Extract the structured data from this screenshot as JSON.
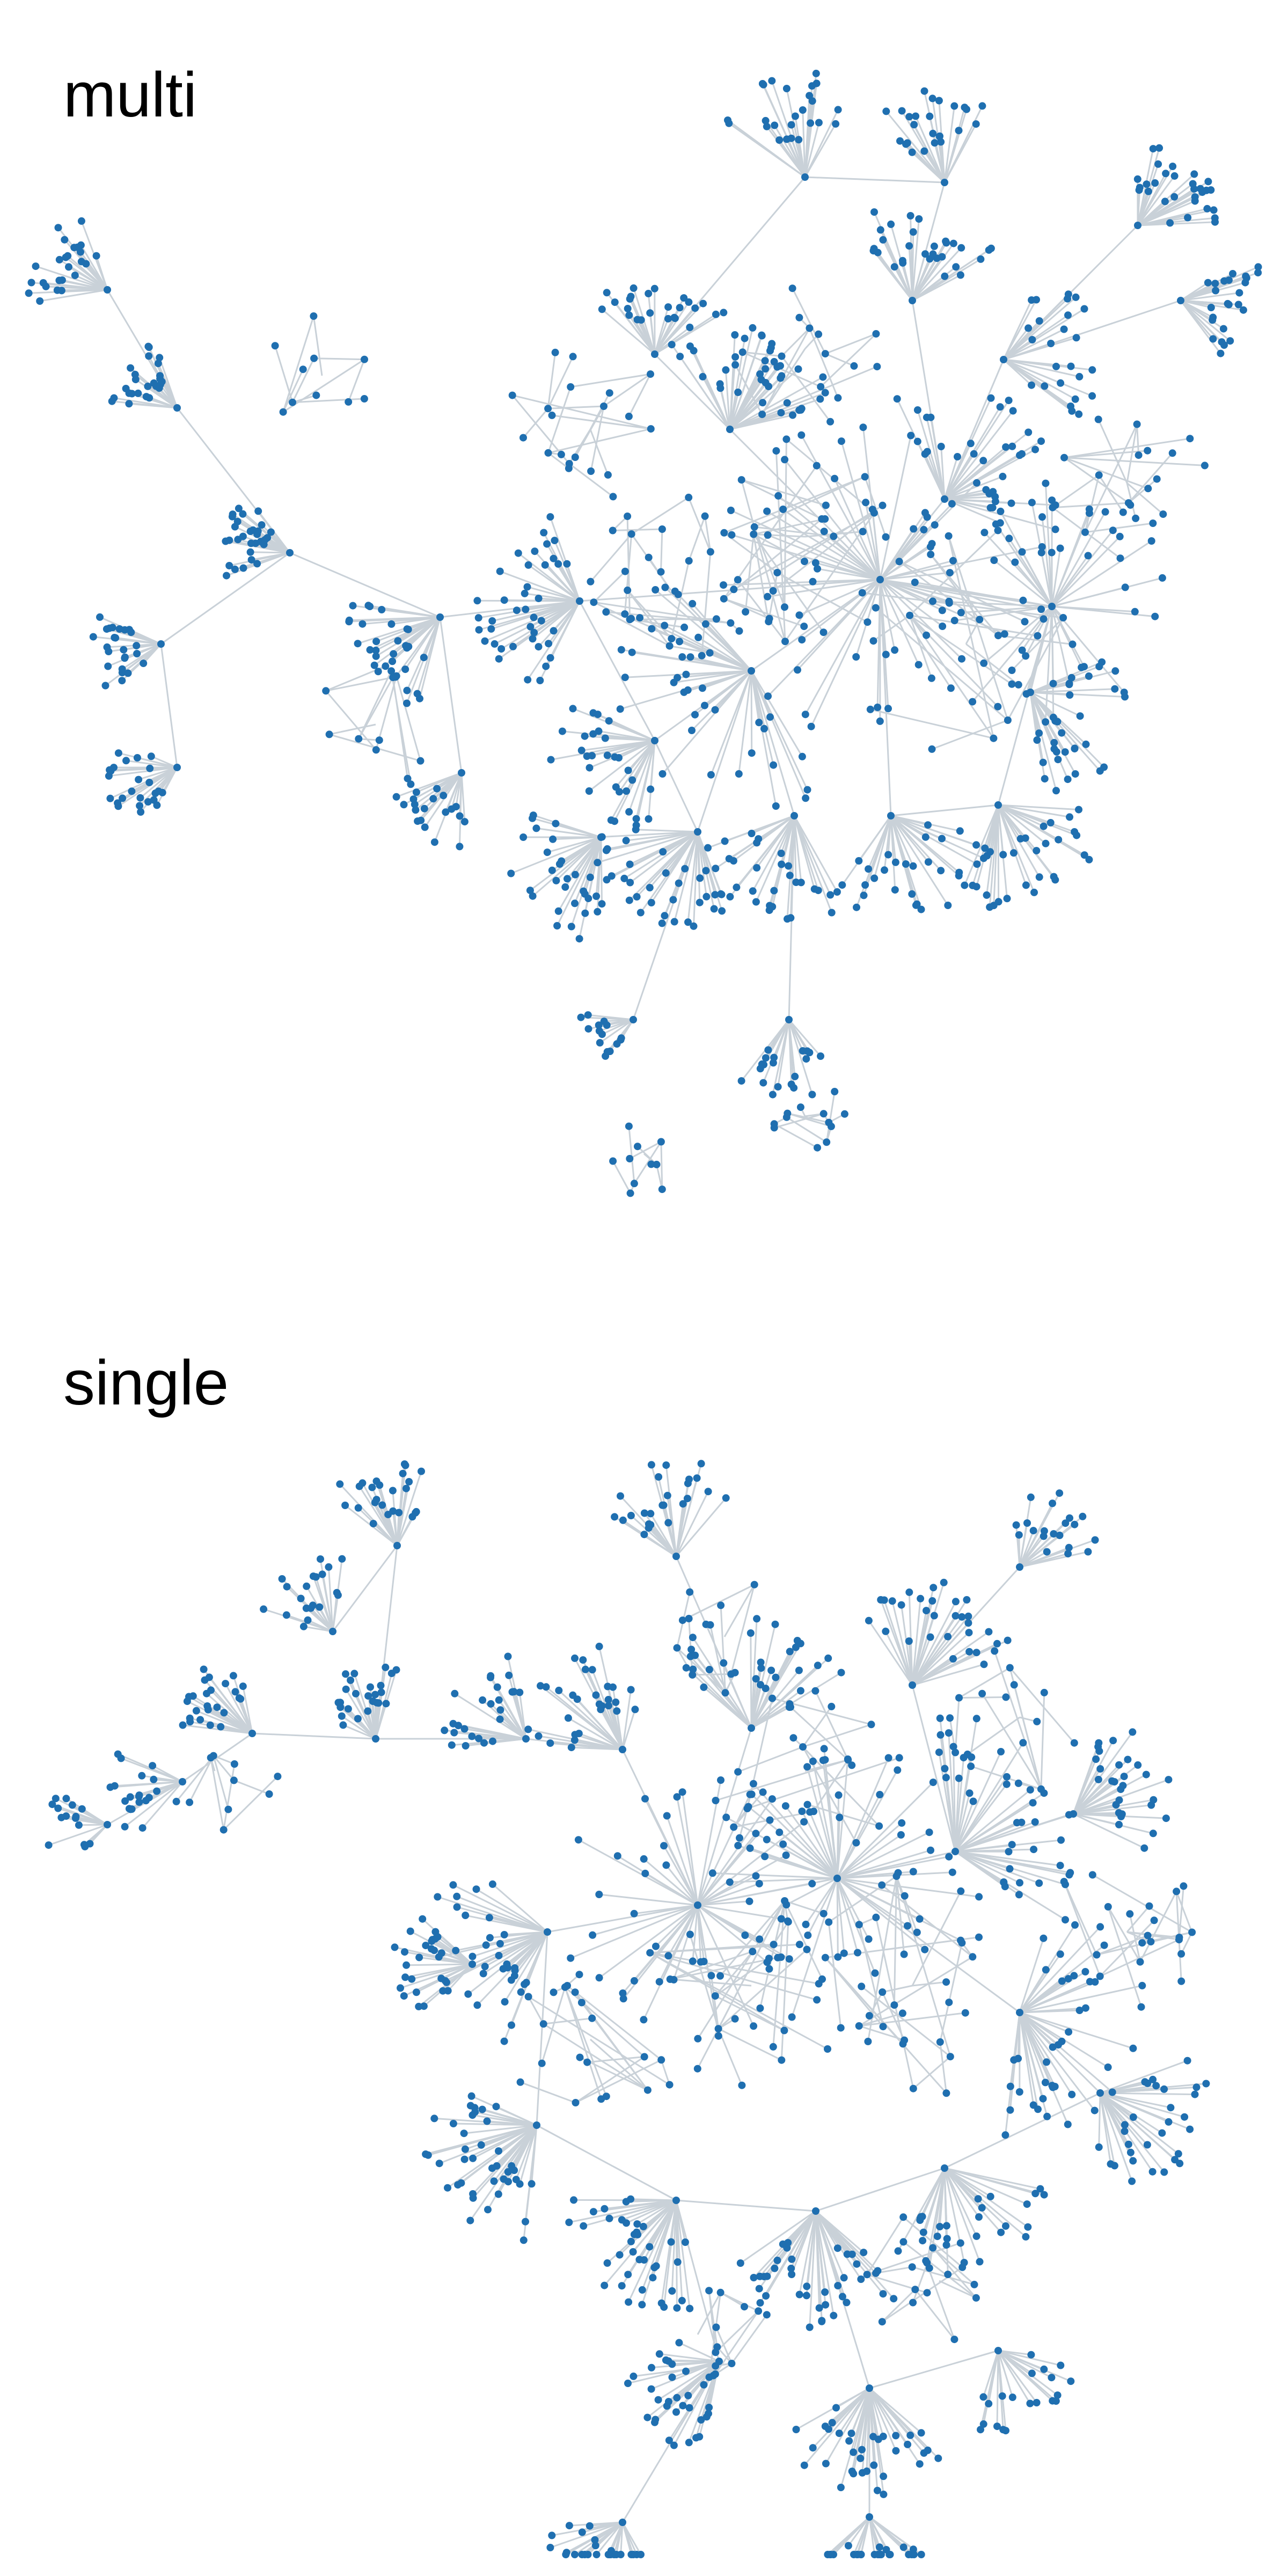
{
  "colors": {
    "background": "#ffffff",
    "node": "#1f6fb0",
    "edge": "#c9d1d8",
    "title": "#000000"
  },
  "panels": [
    {
      "id": "multi",
      "title": "multi"
    },
    {
      "id": "single",
      "title": "single"
    }
  ]
}
